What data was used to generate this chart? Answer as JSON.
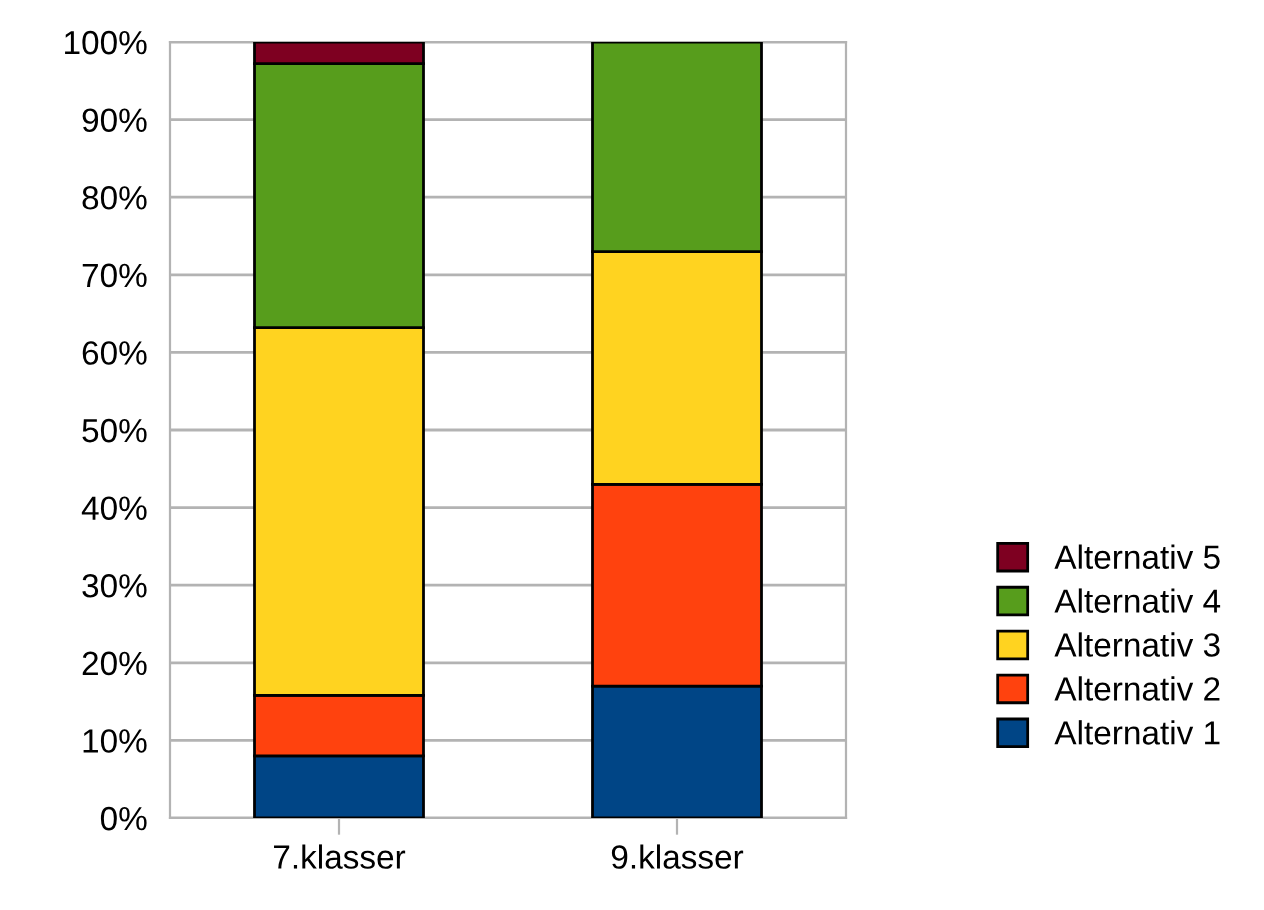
{
  "chart_data": {
    "type": "bar",
    "stacked": true,
    "categories": [
      "7.klasser",
      "9.klasser"
    ],
    "series": [
      {
        "name": "Alternativ 1",
        "color": "#004586",
        "values": [
          8,
          17
        ]
      },
      {
        "name": "Alternativ 2",
        "color": "#ff420e",
        "values": [
          7.8,
          26
        ]
      },
      {
        "name": "Alternativ 3",
        "color": "#ffd320",
        "values": [
          47.4,
          30
        ]
      },
      {
        "name": "Alternativ 4",
        "color": "#579d1c",
        "values": [
          34,
          27
        ]
      },
      {
        "name": "Alternativ 5",
        "color": "#7e0021",
        "values": [
          2.8,
          null
        ]
      }
    ],
    "ylim": [
      0,
      100
    ],
    "yticks": [
      {
        "value": 0,
        "label": "0%"
      },
      {
        "value": 10,
        "label": "10%"
      },
      {
        "value": 20,
        "label": "20%"
      },
      {
        "value": 30,
        "label": "30%"
      },
      {
        "value": 40,
        "label": "40%"
      },
      {
        "value": 50,
        "label": "50%"
      },
      {
        "value": 60,
        "label": "60%"
      },
      {
        "value": 70,
        "label": "70%"
      },
      {
        "value": 80,
        "label": "80%"
      },
      {
        "value": 90,
        "label": "90%"
      },
      {
        "value": 100,
        "label": "100%"
      }
    ],
    "grid": "y",
    "legend": "right"
  }
}
